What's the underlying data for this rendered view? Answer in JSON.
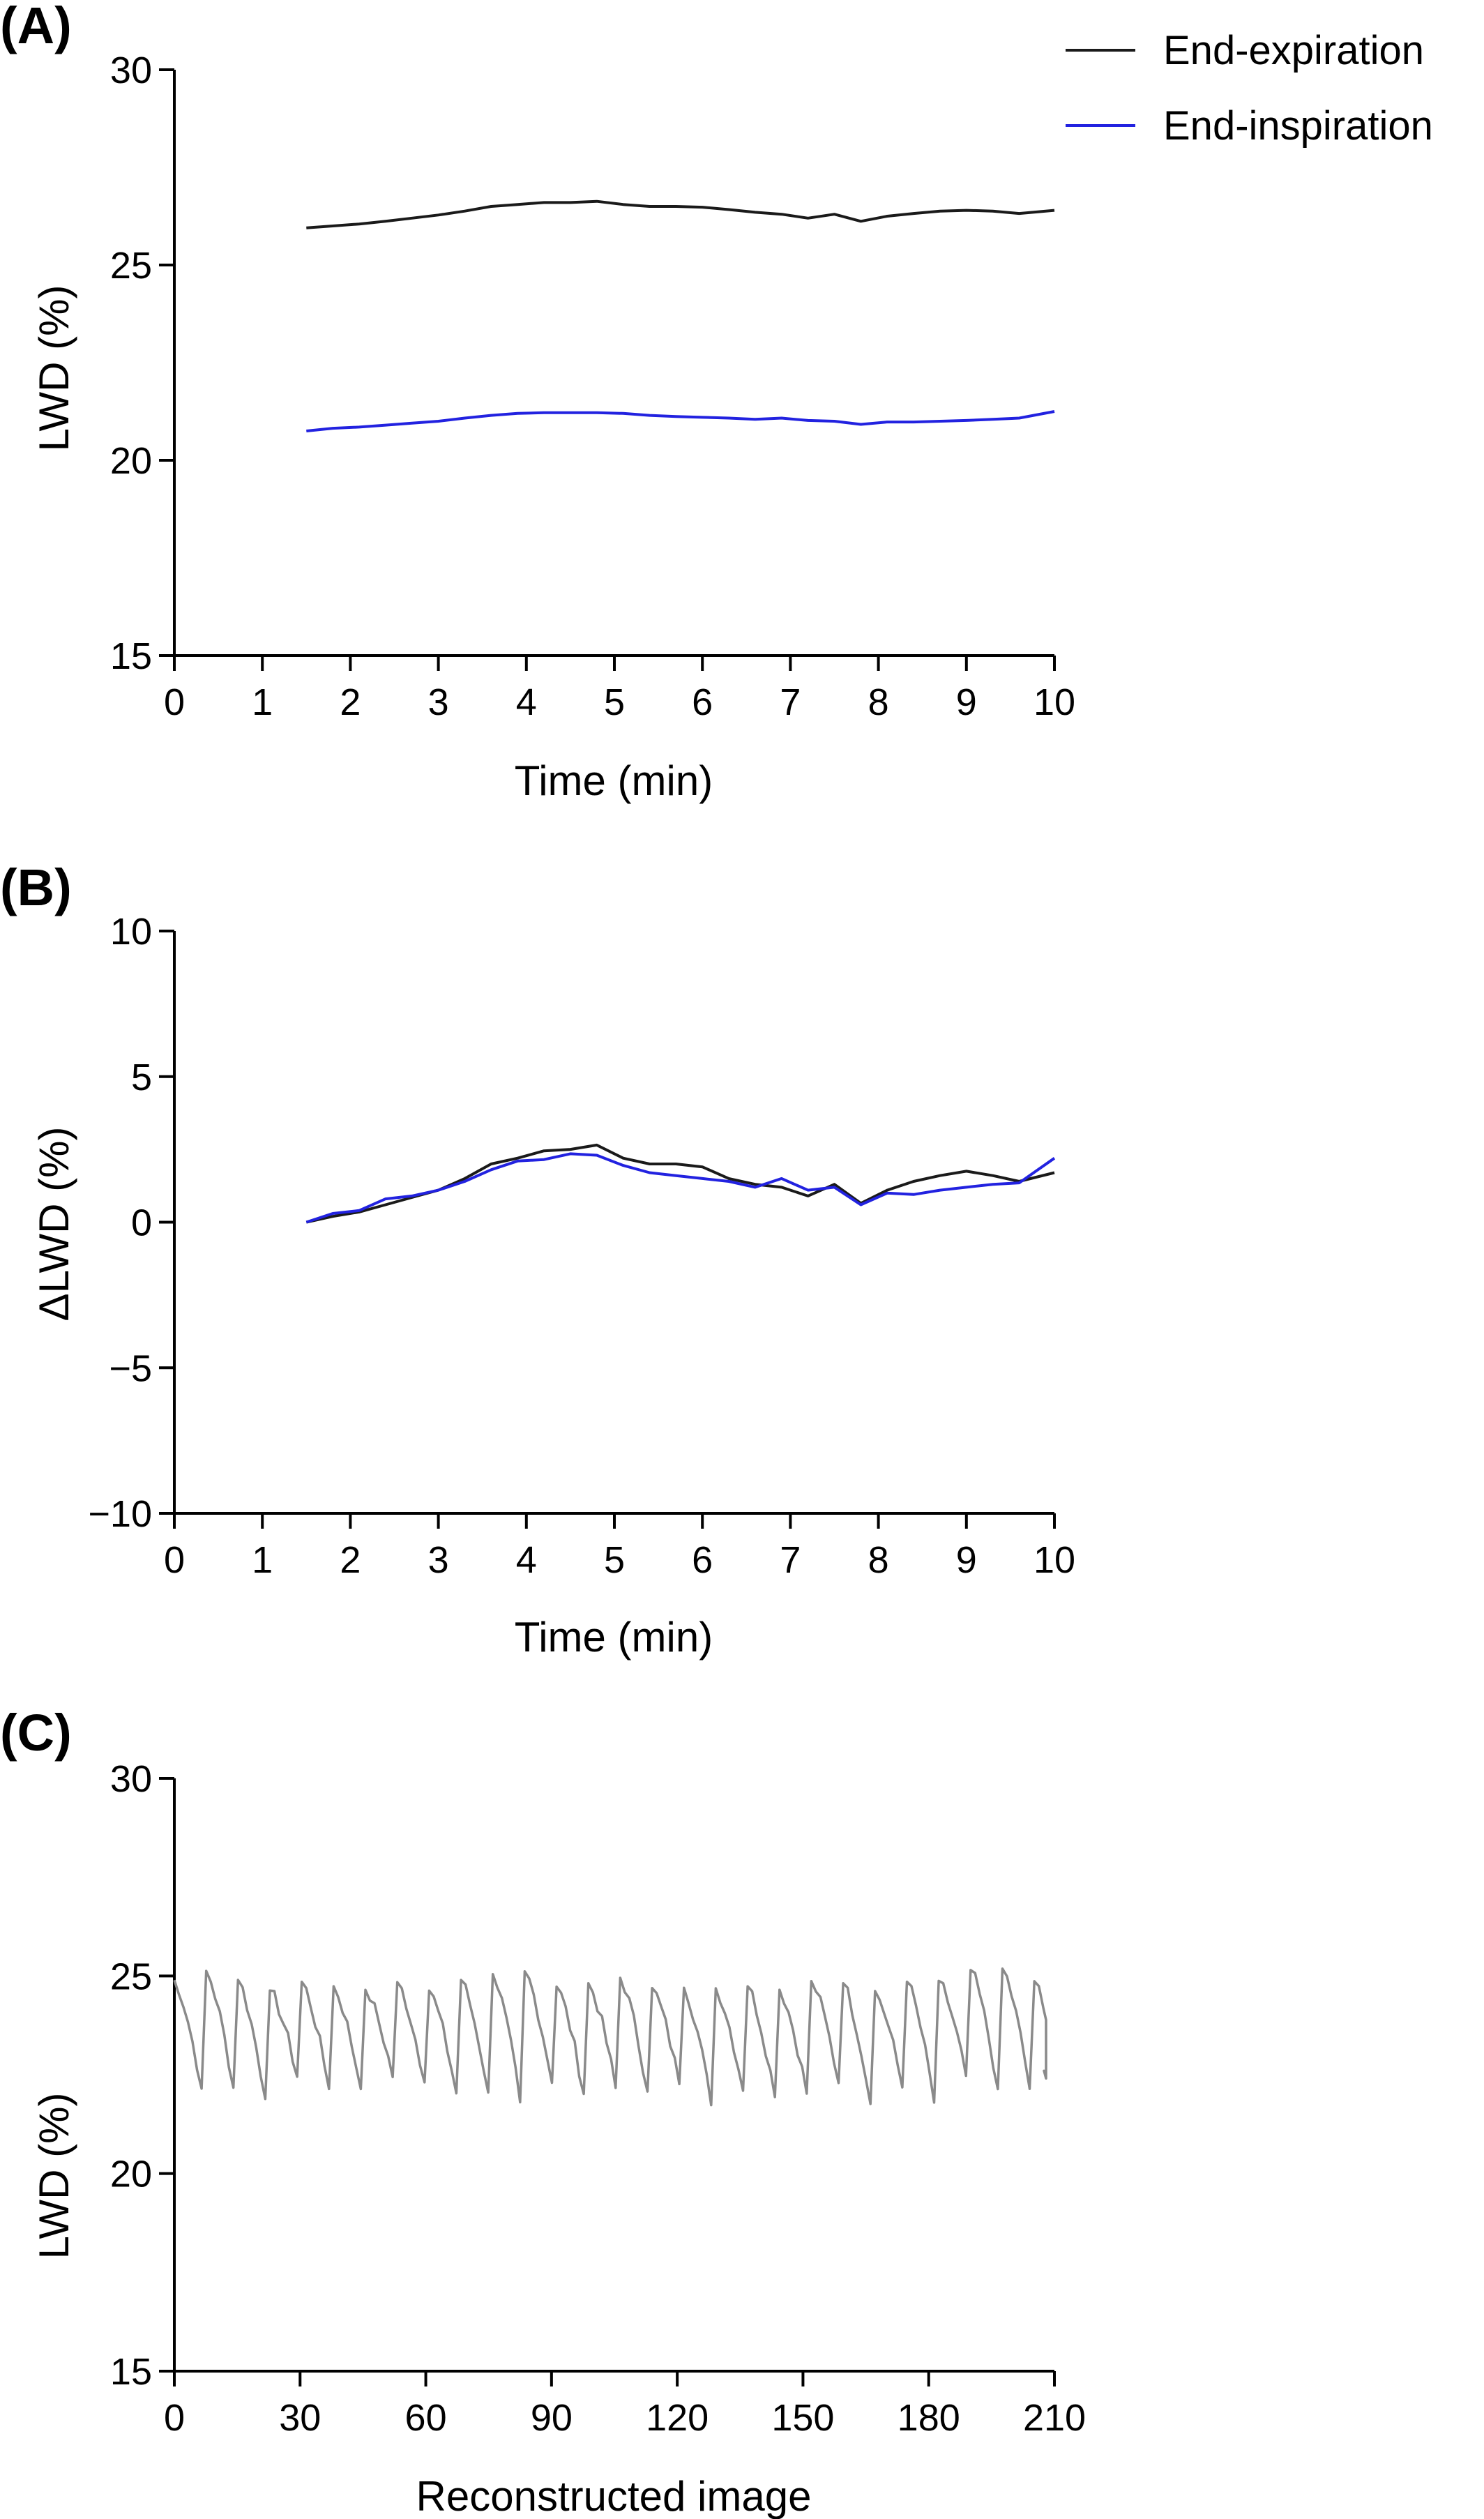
{
  "colors": {
    "expiration": "#1a1a1a",
    "inspiration": "#2222e0",
    "panel_c_line": "#8a8a8a",
    "axis": "#000000"
  },
  "legend": {
    "position": "top-right",
    "items": [
      {
        "label": "End-expiration",
        "color": "#1a1a1a"
      },
      {
        "label": "End-inspiration",
        "color": "#2222e0"
      }
    ]
  },
  "chart_data": [
    {
      "panel": "(A)",
      "type": "line",
      "xlabel": "Time (min)",
      "ylabel": "LWD (%)",
      "xlim": [
        0,
        10
      ],
      "ylim": [
        15,
        30
      ],
      "xticks": [
        "0",
        "1",
        "2",
        "3",
        "4",
        "5",
        "6",
        "7",
        "8",
        "9",
        "10"
      ],
      "yticks": [
        "15",
        "20",
        "25",
        "30"
      ],
      "grid": false,
      "x": [
        1.5,
        1.8,
        2.1,
        2.4,
        2.7,
        3.0,
        3.3,
        3.6,
        3.9,
        4.2,
        4.5,
        4.8,
        5.1,
        5.4,
        5.7,
        6.0,
        6.3,
        6.6,
        6.9,
        7.2,
        7.5,
        7.8,
        8.1,
        8.4,
        8.7,
        9.0,
        9.3,
        9.6,
        10.0
      ],
      "series": [
        {
          "name": "End-expiration",
          "values": [
            25.95,
            26.0,
            26.05,
            26.12,
            26.2,
            26.28,
            26.38,
            26.5,
            26.55,
            26.6,
            26.6,
            26.63,
            26.55,
            26.5,
            26.5,
            26.48,
            26.42,
            26.35,
            26.3,
            26.2,
            26.3,
            26.12,
            26.25,
            26.32,
            26.38,
            26.4,
            26.38,
            26.32,
            26.4
          ]
        },
        {
          "name": "End-inspiration",
          "values": [
            20.75,
            20.82,
            20.85,
            20.9,
            20.95,
            21.0,
            21.08,
            21.15,
            21.2,
            21.22,
            21.22,
            21.22,
            21.2,
            21.15,
            21.12,
            21.1,
            21.08,
            21.05,
            21.08,
            21.02,
            21.0,
            20.92,
            20.98,
            20.98,
            21.0,
            21.02,
            21.05,
            21.08,
            21.25
          ]
        }
      ]
    },
    {
      "panel": "(B)",
      "type": "line",
      "xlabel": "Time (min)",
      "ylabel": "ΔLWD (%)",
      "xlim": [
        0,
        10
      ],
      "ylim": [
        -10,
        10
      ],
      "xticks": [
        "0",
        "1",
        "2",
        "3",
        "4",
        "5",
        "6",
        "7",
        "8",
        "9",
        "10"
      ],
      "yticks": [
        "−10",
        "−5",
        "0",
        "5",
        "10"
      ],
      "grid": false,
      "x": [
        1.5,
        1.8,
        2.1,
        2.4,
        2.7,
        3.0,
        3.3,
        3.6,
        3.9,
        4.2,
        4.5,
        4.8,
        5.1,
        5.4,
        5.7,
        6.0,
        6.3,
        6.6,
        6.9,
        7.2,
        7.5,
        7.8,
        8.1,
        8.4,
        8.7,
        9.0,
        9.3,
        9.6,
        10.0
      ],
      "series": [
        {
          "name": "End-expiration",
          "values": [
            0.0,
            0.2,
            0.35,
            0.6,
            0.85,
            1.1,
            1.5,
            2.0,
            2.2,
            2.45,
            2.5,
            2.65,
            2.2,
            2.0,
            2.0,
            1.9,
            1.5,
            1.3,
            1.2,
            0.9,
            1.3,
            0.65,
            1.1,
            1.4,
            1.6,
            1.75,
            1.6,
            1.4,
            1.7
          ]
        },
        {
          "name": "End-inspiration",
          "values": [
            0.0,
            0.3,
            0.4,
            0.8,
            0.9,
            1.1,
            1.4,
            1.8,
            2.1,
            2.15,
            2.35,
            2.3,
            1.95,
            1.7,
            1.6,
            1.5,
            1.4,
            1.2,
            1.5,
            1.1,
            1.2,
            0.6,
            1.0,
            0.95,
            1.1,
            1.2,
            1.3,
            1.35,
            2.2
          ]
        }
      ]
    },
    {
      "panel": "(C)",
      "type": "line",
      "xlabel": "Reconstructed image",
      "ylabel": "LWD (%)",
      "xlim": [
        0,
        210
      ],
      "ylim": [
        15,
        30
      ],
      "xticks": [
        "0",
        "30",
        "60",
        "90",
        "120",
        "150",
        "180",
        "210"
      ],
      "yticks": [
        "15",
        "20",
        "25",
        "30"
      ],
      "grid": false,
      "pattern": {
        "description": "periodic tidal LWD signal",
        "first_x": 0,
        "last_x": 210,
        "cycle_length": 7.6,
        "peak_range": [
          24.6,
          25.2
        ],
        "trough_range": [
          21.7,
          22.5
        ],
        "final_value": 22.5
      }
    }
  ]
}
